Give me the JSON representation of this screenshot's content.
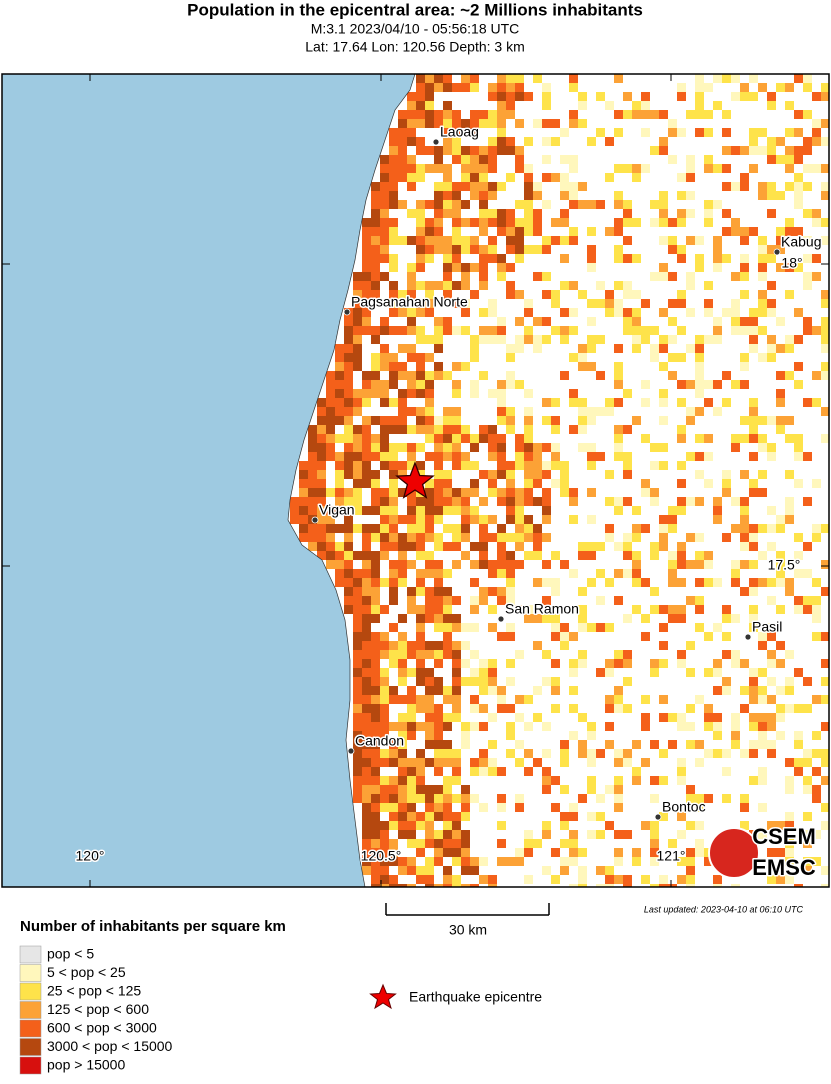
{
  "header": {
    "title": "Population in the epicentral area: ~2 Millions inhabitants",
    "event": "M:3.1 2023/04/10 - 05:56:18 UTC",
    "location": "Lat: 17.64 Lon: 120.56 Depth: 3 km"
  },
  "map": {
    "cities": [
      "Laoag",
      "Kabug",
      "Pagsanahan Norte",
      "Vigan",
      "San Ramon",
      "Pasil",
      "Candon",
      "Bontoc"
    ],
    "lon_labels": [
      "120°",
      "120.5°",
      "121°"
    ],
    "lat_labels": [
      "18°",
      "17.5°"
    ],
    "sea_color": "#9ecae1"
  },
  "scale_bar": "30 km",
  "last_updated": "Last updated: 2023-04-10 at 06:10 UTC",
  "legend": {
    "title": "Number of inhabitants per square km",
    "items": [
      {
        "label": "pop < 5",
        "color": "#e6e6e6"
      },
      {
        "label": "5 < pop < 25",
        "color": "#fff7bc"
      },
      {
        "label": "25 < pop < 125",
        "color": "#fee34a"
      },
      {
        "label": "125 < pop < 600",
        "color": "#fca236"
      },
      {
        "label": "600 < pop < 3000",
        "color": "#f4601a"
      },
      {
        "label": "3000 < pop < 15000",
        "color": "#b5480f"
      },
      {
        "label": "pop > 15000",
        "color": "#d7100e"
      }
    ],
    "epicentre": "Earthquake epicentre"
  },
  "logo": [
    "CSEM",
    "EMSC"
  ]
}
